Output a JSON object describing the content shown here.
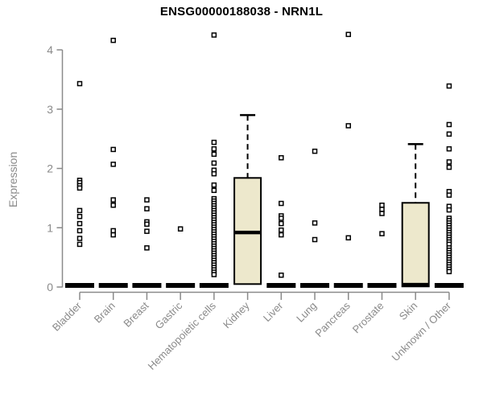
{
  "title": "ENSG00000188038 - NRN1L",
  "y_axis": {
    "label": "Expression",
    "ticks": [
      "0",
      "1",
      "2",
      "3",
      "4"
    ]
  },
  "colors": {
    "box_fill": "#EDE8CC",
    "box_border": "#000000",
    "median": "#000000",
    "whisker": "#000000",
    "point": "#000000",
    "axis": "#8a8a8a",
    "tick_label": "#8a8a8a",
    "title": "#000000",
    "background": "#ffffff"
  },
  "chart_data": {
    "type": "boxplot",
    "title": "ENSG00000188038 - NRN1L",
    "xlabel": "",
    "ylabel": "Expression",
    "ylim": [
      0,
      4.35
    ],
    "yticks": [
      0,
      1,
      2,
      3,
      4
    ],
    "grid": false,
    "legend": null,
    "categories": [
      "Bladder",
      "Brain",
      "Breast",
      "Gastric",
      "Hematopoietic cells",
      "Kidney",
      "Liver",
      "Lung",
      "Pancreas",
      "Prostate",
      "Skin",
      "Unknown / Other"
    ],
    "series": [
      {
        "name": "Bladder",
        "box": {
          "q1": 0,
          "median": 0,
          "q3": 0,
          "whisker_low": 0,
          "whisker_high": 0
        },
        "outliers": [
          3.43,
          1.8,
          1.76,
          1.71,
          1.67,
          1.29,
          1.19,
          1.07,
          0.95,
          0.82,
          0.72
        ]
      },
      {
        "name": "Brain",
        "box": {
          "q1": 0,
          "median": 0,
          "q3": 0,
          "whisker_low": 0,
          "whisker_high": 0
        },
        "outliers": [
          4.16,
          2.32,
          2.07,
          1.47,
          1.38,
          0.95,
          0.88
        ]
      },
      {
        "name": "Breast",
        "box": {
          "q1": 0,
          "median": 0,
          "q3": 0,
          "whisker_low": 0,
          "whisker_high": 0
        },
        "outliers": [
          1.47,
          1.32,
          1.1,
          1.06,
          0.94,
          0.66
        ]
      },
      {
        "name": "Gastric",
        "box": {
          "q1": 0,
          "median": 0,
          "q3": 0,
          "whisker_low": 0,
          "whisker_high": 0
        },
        "outliers": [
          0.98
        ]
      },
      {
        "name": "Hematopoietic cells",
        "box": {
          "q1": 0,
          "median": 0,
          "q3": 0,
          "whisker_low": 0,
          "whisker_high": 0
        },
        "outliers": [
          4.25,
          2.44,
          2.33,
          2.24,
          2.09,
          1.97,
          1.91,
          1.72,
          1.63,
          1.49,
          1.45,
          1.41,
          1.37,
          1.33,
          1.29,
          1.25,
          1.21,
          1.17,
          1.13,
          1.09,
          1.05,
          1.01,
          0.97,
          0.93,
          0.89,
          0.85,
          0.81,
          0.77,
          0.73,
          0.69,
          0.65,
          0.61,
          0.57,
          0.53,
          0.49,
          0.45,
          0.41,
          0.37,
          0.33,
          0.29,
          0.25,
          0.21
        ]
      },
      {
        "name": "Kidney",
        "box": {
          "q1": 0.05,
          "median": 0.92,
          "q3": 1.84,
          "whisker_low": 0.05,
          "whisker_high": 2.9
        },
        "outliers": []
      },
      {
        "name": "Liver",
        "box": {
          "q1": 0,
          "median": 0,
          "q3": 0,
          "whisker_low": 0,
          "whisker_high": 0
        },
        "outliers": [
          2.18,
          1.41,
          1.2,
          1.16,
          1.07,
          0.96,
          0.88,
          0.2
        ]
      },
      {
        "name": "Lung",
        "box": {
          "q1": 0,
          "median": 0,
          "q3": 0,
          "whisker_low": 0,
          "whisker_high": 0
        },
        "outliers": [
          2.29,
          1.08,
          0.8
        ]
      },
      {
        "name": "Pancreas",
        "box": {
          "q1": 0,
          "median": 0,
          "q3": 0,
          "whisker_low": 0,
          "whisker_high": 0
        },
        "outliers": [
          4.26,
          2.72,
          0.83
        ]
      },
      {
        "name": "Prostate",
        "box": {
          "q1": 0,
          "median": 0,
          "q3": 0,
          "whisker_low": 0,
          "whisker_high": 0
        },
        "outliers": [
          1.38,
          1.31,
          1.24,
          0.9
        ]
      },
      {
        "name": "Skin",
        "box": {
          "q1": 0.01,
          "median": 0.04,
          "q3": 1.42,
          "whisker_low": 0.01,
          "whisker_high": 2.41
        },
        "outliers": []
      },
      {
        "name": "Unknown / Other",
        "box": {
          "q1": 0,
          "median": 0,
          "q3": 0,
          "whisker_low": 0,
          "whisker_high": 0
        },
        "outliers": [
          3.39,
          2.74,
          2.58,
          2.33,
          2.11,
          2.02,
          1.61,
          1.55,
          1.36,
          1.3,
          1.16,
          1.12,
          1.08,
          1.04,
          1.0,
          0.96,
          0.92,
          0.88,
          0.84,
          0.8,
          0.76,
          0.72,
          0.66,
          0.62,
          0.58,
          0.54,
          0.5,
          0.46,
          0.42,
          0.38,
          0.34,
          0.3,
          0.26
        ]
      }
    ]
  }
}
